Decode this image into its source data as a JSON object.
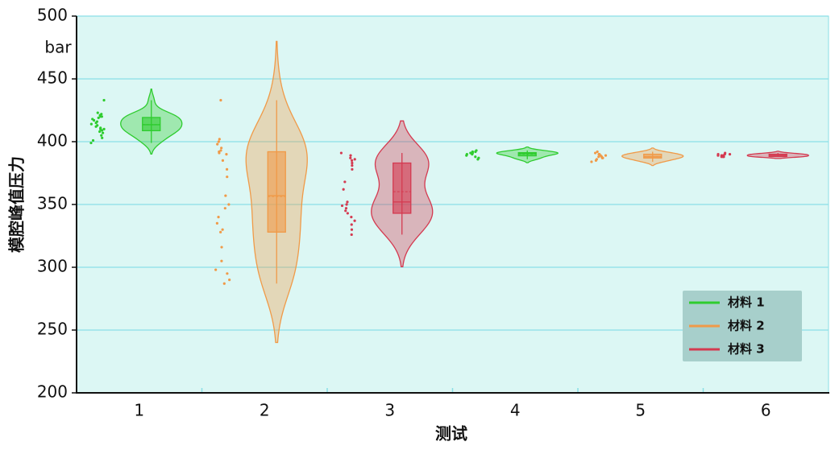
{
  "chart_data": {
    "type": "violin",
    "y_label": "模腔峰值压力",
    "y_unit": "bar",
    "x_label": "测试",
    "categories": [
      "1",
      "2",
      "3",
      "4",
      "5",
      "6"
    ],
    "series": [
      {
        "name": "材料 1",
        "color": "#2ecc2e",
        "values": [
          [
            433,
            423,
            422,
            421,
            420,
            420,
            419,
            418,
            417,
            416,
            415,
            414,
            413,
            412,
            411,
            410,
            410,
            409,
            408,
            407,
            405,
            403,
            401,
            399
          ],
          null,
          null,
          [
            393,
            392,
            392,
            391,
            391,
            391,
            390,
            390,
            389,
            388,
            387,
            386
          ],
          null,
          null
        ]
      },
      {
        "name": "材料 2",
        "color": "#f09a48",
        "values": [
          null,
          [
            433,
            402,
            400,
            398,
            395,
            393,
            392,
            391,
            390,
            385,
            378,
            372,
            357,
            350,
            347,
            340,
            335,
            330,
            328,
            316,
            305,
            298,
            295,
            290,
            287
          ],
          null,
          null,
          [
            392,
            391,
            390,
            390,
            389,
            389,
            388,
            388,
            387,
            387,
            386,
            385,
            384
          ],
          null
        ]
      },
      {
        "name": "材料 3",
        "color": "#d43a50",
        "values": [
          null,
          null,
          [
            391,
            389,
            387,
            386,
            385,
            383,
            381,
            378,
            368,
            362,
            352,
            350,
            349,
            347,
            345,
            343,
            340,
            337,
            334,
            330,
            326
          ],
          null,
          null,
          [
            391,
            390,
            390,
            390,
            389,
            389,
            389,
            388,
            388,
            388
          ]
        ]
      }
    ],
    "ylim": [
      200,
      500
    ],
    "yticks": [
      200,
      250,
      300,
      350,
      400,
      450,
      500
    ],
    "grid": true,
    "legend": "lower right"
  }
}
